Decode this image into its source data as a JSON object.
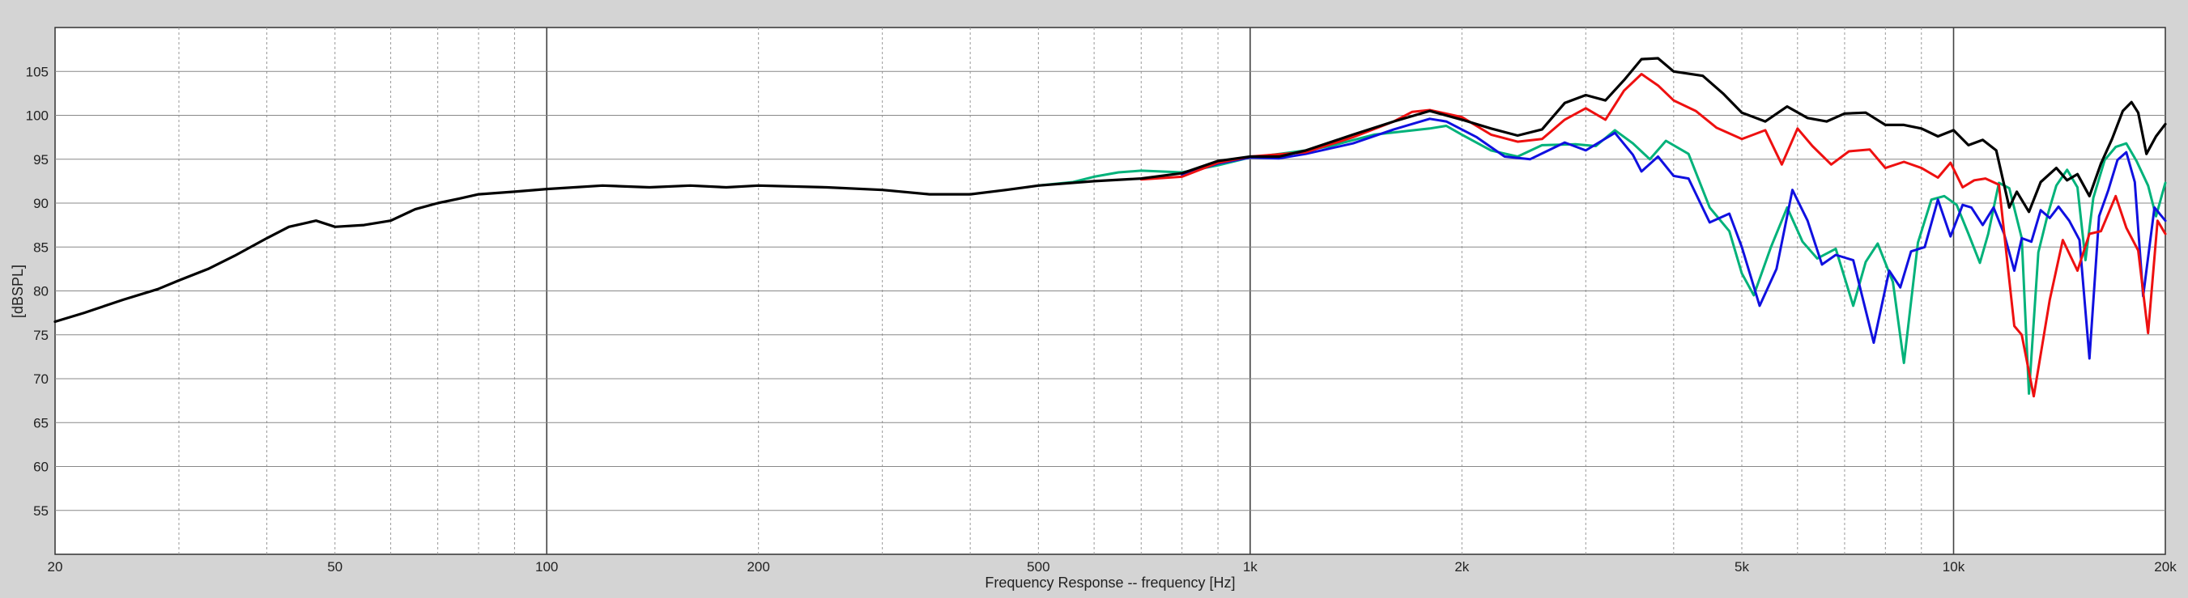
{
  "chart_data": {
    "type": "line",
    "title": "",
    "xlabel": "Frequency Response -- frequency [Hz]",
    "ylabel": "[dBSPL]",
    "x_scale": "log",
    "xlim": [
      20,
      20000
    ],
    "ylim": [
      50,
      110
    ],
    "grid": true,
    "x_ticks": [
      {
        "value": 20,
        "label": "20"
      },
      {
        "value": 50,
        "label": "50"
      },
      {
        "value": 100,
        "label": "100"
      },
      {
        "value": 200,
        "label": "200"
      },
      {
        "value": 500,
        "label": "500"
      },
      {
        "value": 1000,
        "label": "1k"
      },
      {
        "value": 2000,
        "label": "2k"
      },
      {
        "value": 5000,
        "label": "5k"
      },
      {
        "value": 10000,
        "label": "10k"
      },
      {
        "value": 20000,
        "label": "20k"
      }
    ],
    "y_ticks": [
      55,
      60,
      65,
      70,
      75,
      80,
      85,
      90,
      95,
      100,
      105
    ],
    "series": [
      {
        "color": "#00b27a",
        "points": [
          [
            500,
            92
          ],
          [
            560,
            92.4
          ],
          [
            600,
            93
          ],
          [
            650,
            93.5
          ],
          [
            700,
            93.7
          ],
          [
            800,
            93.5
          ],
          [
            900,
            94.3
          ],
          [
            1000,
            95.2
          ],
          [
            1100,
            95.6
          ],
          [
            1200,
            96
          ],
          [
            1300,
            96.5
          ],
          [
            1500,
            97.8
          ],
          [
            1800,
            98.5
          ],
          [
            1900,
            98.8
          ],
          [
            2000,
            97.8
          ],
          [
            2200,
            96
          ],
          [
            2400,
            95.3
          ],
          [
            2600,
            96.6
          ],
          [
            2900,
            96.7
          ],
          [
            3100,
            96.5
          ],
          [
            3300,
            98.3
          ],
          [
            3500,
            96.8
          ],
          [
            3700,
            95
          ],
          [
            3900,
            97.1
          ],
          [
            4200,
            95.6
          ],
          [
            4500,
            89.5
          ],
          [
            4800,
            86.8
          ],
          [
            5000,
            82
          ],
          [
            5200,
            79.5
          ],
          [
            5500,
            85
          ],
          [
            5800,
            89.5
          ],
          [
            6100,
            85.6
          ],
          [
            6400,
            83.7
          ],
          [
            6800,
            84.8
          ],
          [
            7200,
            78.3
          ],
          [
            7500,
            83.3
          ],
          [
            7800,
            85.4
          ],
          [
            8200,
            81
          ],
          [
            8500,
            71.8
          ],
          [
            8900,
            85.5
          ],
          [
            9300,
            90.4
          ],
          [
            9700,
            90.8
          ],
          [
            10100,
            89.8
          ],
          [
            10500,
            86.5
          ],
          [
            10900,
            83.2
          ],
          [
            11200,
            86.5
          ],
          [
            11600,
            92.3
          ],
          [
            12000,
            91.7
          ],
          [
            12500,
            86
          ],
          [
            12800,
            68.3
          ],
          [
            13200,
            84.4
          ],
          [
            13600,
            88.6
          ],
          [
            14000,
            92
          ],
          [
            14500,
            93.8
          ],
          [
            15000,
            91.8
          ],
          [
            15400,
            83.5
          ],
          [
            15800,
            90.6
          ],
          [
            16400,
            94.9
          ],
          [
            17000,
            96.4
          ],
          [
            17600,
            96.8
          ],
          [
            18200,
            94.8
          ],
          [
            18900,
            92
          ],
          [
            19400,
            88.5
          ],
          [
            20000,
            92.3
          ]
        ]
      },
      {
        "color": "#1010e0",
        "points": [
          [
            800,
            93.2
          ],
          [
            900,
            94.5
          ],
          [
            1000,
            95.2
          ],
          [
            1100,
            95.1
          ],
          [
            1200,
            95.6
          ],
          [
            1400,
            96.8
          ],
          [
            1600,
            98.4
          ],
          [
            1800,
            99.6
          ],
          [
            1900,
            99.3
          ],
          [
            2100,
            97.5
          ],
          [
            2300,
            95.3
          ],
          [
            2500,
            95
          ],
          [
            2800,
            96.9
          ],
          [
            3000,
            96
          ],
          [
            3300,
            98
          ],
          [
            3500,
            95.5
          ],
          [
            3600,
            93.6
          ],
          [
            3800,
            95.3
          ],
          [
            4000,
            93.1
          ],
          [
            4200,
            92.8
          ],
          [
            4500,
            87.8
          ],
          [
            4800,
            88.8
          ],
          [
            5000,
            85
          ],
          [
            5300,
            78.3
          ],
          [
            5600,
            82.5
          ],
          [
            5900,
            91.5
          ],
          [
            6200,
            88
          ],
          [
            6500,
            83
          ],
          [
            6800,
            84.1
          ],
          [
            7200,
            83.5
          ],
          [
            7700,
            74.1
          ],
          [
            8100,
            82.3
          ],
          [
            8400,
            80.4
          ],
          [
            8700,
            84.5
          ],
          [
            9100,
            85
          ],
          [
            9500,
            90.4
          ],
          [
            9900,
            86.2
          ],
          [
            10300,
            89.8
          ],
          [
            10600,
            89.5
          ],
          [
            11000,
            87.5
          ],
          [
            11400,
            89.5
          ],
          [
            11800,
            86.5
          ],
          [
            12200,
            82.3
          ],
          [
            12500,
            86
          ],
          [
            12900,
            85.6
          ],
          [
            13300,
            89.2
          ],
          [
            13700,
            88.3
          ],
          [
            14100,
            89.6
          ],
          [
            14600,
            88
          ],
          [
            15100,
            85.8
          ],
          [
            15600,
            72.3
          ],
          [
            16100,
            88.5
          ],
          [
            16600,
            91.5
          ],
          [
            17100,
            94.9
          ],
          [
            17600,
            95.8
          ],
          [
            18100,
            92.4
          ],
          [
            18600,
            79.4
          ],
          [
            19300,
            89.5
          ],
          [
            20000,
            88
          ]
        ]
      },
      {
        "color": "#ee1010",
        "points": [
          [
            700,
            92.7
          ],
          [
            800,
            93
          ],
          [
            900,
            94.6
          ],
          [
            1000,
            95.3
          ],
          [
            1200,
            95.8
          ],
          [
            1400,
            97.5
          ],
          [
            1600,
            99.3
          ],
          [
            1700,
            100.4
          ],
          [
            1800,
            100.6
          ],
          [
            2000,
            99.8
          ],
          [
            2200,
            97.8
          ],
          [
            2400,
            97
          ],
          [
            2600,
            97.3
          ],
          [
            2800,
            99.5
          ],
          [
            3000,
            100.8
          ],
          [
            3200,
            99.5
          ],
          [
            3400,
            102.8
          ],
          [
            3600,
            104.7
          ],
          [
            3800,
            103.4
          ],
          [
            4000,
            101.7
          ],
          [
            4300,
            100.5
          ],
          [
            4600,
            98.6
          ],
          [
            5000,
            97.3
          ],
          [
            5400,
            98.3
          ],
          [
            5700,
            94.4
          ],
          [
            6000,
            98.5
          ],
          [
            6300,
            96.5
          ],
          [
            6700,
            94.4
          ],
          [
            7100,
            95.9
          ],
          [
            7600,
            96.1
          ],
          [
            8000,
            94
          ],
          [
            8500,
            94.7
          ],
          [
            9000,
            94
          ],
          [
            9500,
            92.9
          ],
          [
            9900,
            94.6
          ],
          [
            10300,
            91.8
          ],
          [
            10700,
            92.6
          ],
          [
            11100,
            92.8
          ],
          [
            11600,
            92.1
          ],
          [
            12200,
            76
          ],
          [
            12500,
            75
          ],
          [
            13000,
            68
          ],
          [
            13700,
            79
          ],
          [
            14300,
            85.8
          ],
          [
            15000,
            82.3
          ],
          [
            15600,
            86.5
          ],
          [
            16200,
            86.8
          ],
          [
            17000,
            90.8
          ],
          [
            17600,
            87.2
          ],
          [
            18300,
            84.6
          ],
          [
            18900,
            75.2
          ],
          [
            19500,
            88
          ],
          [
            20000,
            86.5
          ]
        ]
      },
      {
        "color": "#000000",
        "points": [
          [
            20,
            76.5
          ],
          [
            22,
            77.5
          ],
          [
            25,
            79
          ],
          [
            28,
            80.2
          ],
          [
            30,
            81.2
          ],
          [
            33,
            82.5
          ],
          [
            36,
            84
          ],
          [
            40,
            86
          ],
          [
            43,
            87.3
          ],
          [
            47,
            88
          ],
          [
            50,
            87.3
          ],
          [
            55,
            87.5
          ],
          [
            60,
            88
          ],
          [
            65,
            89.3
          ],
          [
            70,
            90
          ],
          [
            75,
            90.5
          ],
          [
            80,
            91
          ],
          [
            90,
            91.3
          ],
          [
            100,
            91.6
          ],
          [
            120,
            92
          ],
          [
            140,
            91.8
          ],
          [
            160,
            92
          ],
          [
            180,
            91.8
          ],
          [
            200,
            92
          ],
          [
            250,
            91.8
          ],
          [
            300,
            91.5
          ],
          [
            350,
            91
          ],
          [
            400,
            91
          ],
          [
            450,
            91.5
          ],
          [
            500,
            92
          ],
          [
            600,
            92.5
          ],
          [
            700,
            92.8
          ],
          [
            800,
            93.4
          ],
          [
            900,
            94.8
          ],
          [
            1000,
            95.3
          ],
          [
            1100,
            95.3
          ],
          [
            1200,
            96
          ],
          [
            1400,
            97.8
          ],
          [
            1600,
            99.3
          ],
          [
            1800,
            100.5
          ],
          [
            2000,
            99.5
          ],
          [
            2200,
            98.5
          ],
          [
            2400,
            97.7
          ],
          [
            2600,
            98.4
          ],
          [
            2800,
            101.4
          ],
          [
            3000,
            102.3
          ],
          [
            3200,
            101.7
          ],
          [
            3400,
            104
          ],
          [
            3600,
            106.4
          ],
          [
            3800,
            106.5
          ],
          [
            4000,
            105
          ],
          [
            4400,
            104.5
          ],
          [
            4700,
            102.5
          ],
          [
            5000,
            100.3
          ],
          [
            5400,
            99.3
          ],
          [
            5800,
            101
          ],
          [
            6200,
            99.7
          ],
          [
            6600,
            99.3
          ],
          [
            7000,
            100.2
          ],
          [
            7500,
            100.3
          ],
          [
            8000,
            98.9
          ],
          [
            8500,
            98.9
          ],
          [
            9000,
            98.5
          ],
          [
            9500,
            97.6
          ],
          [
            10000,
            98.3
          ],
          [
            10500,
            96.6
          ],
          [
            11000,
            97.2
          ],
          [
            11500,
            96
          ],
          [
            12000,
            89.5
          ],
          [
            12300,
            91.3
          ],
          [
            12800,
            89
          ],
          [
            13300,
            92.4
          ],
          [
            14000,
            94
          ],
          [
            14500,
            92.6
          ],
          [
            15000,
            93.3
          ],
          [
            15600,
            90.8
          ],
          [
            16200,
            94.5
          ],
          [
            16800,
            97.3
          ],
          [
            17400,
            100.5
          ],
          [
            17900,
            101.5
          ],
          [
            18300,
            100.3
          ],
          [
            18800,
            95.6
          ],
          [
            19400,
            97.6
          ],
          [
            20000,
            99
          ]
        ]
      }
    ]
  }
}
